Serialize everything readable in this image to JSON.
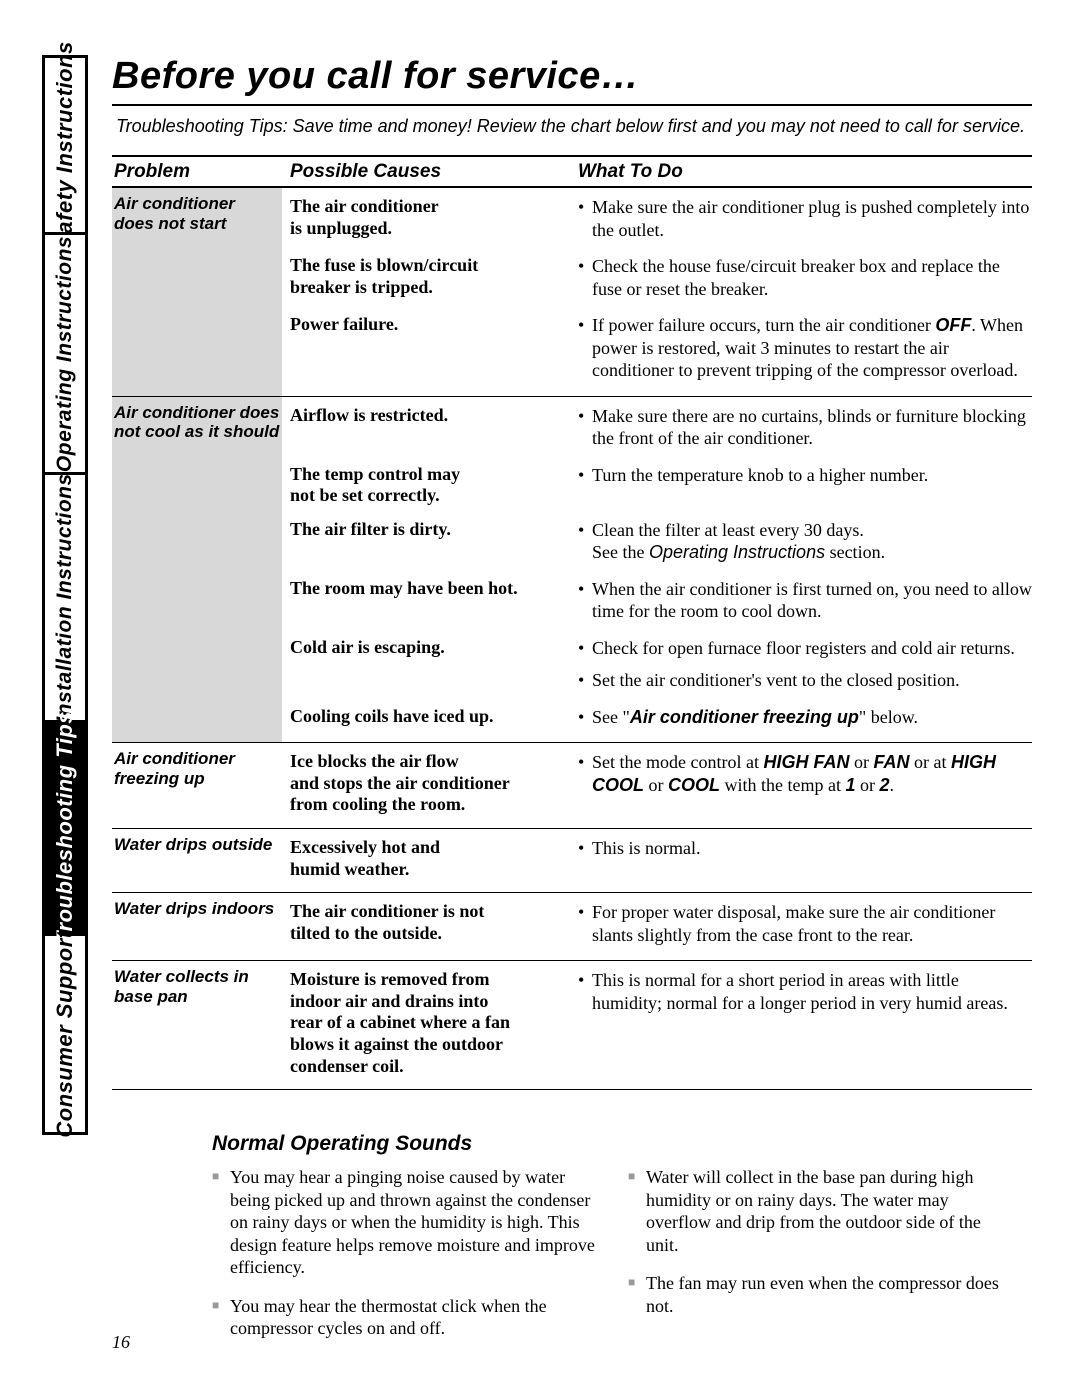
{
  "page_number": "16",
  "side_tabs": [
    {
      "label": "Safety Instructions",
      "active": false
    },
    {
      "label": "Operating Instructions",
      "active": false
    },
    {
      "label": "Installation Instructions",
      "active": false
    },
    {
      "label": "Troubleshooting Tips",
      "active": true
    },
    {
      "label": "Consumer Support",
      "active": false
    }
  ],
  "title": "Before you call for service…",
  "subtitle": "Troubleshooting Tips: Save time and money! Review the chart below first and you may not need to call for service.",
  "table": {
    "headers": {
      "problem": "Problem",
      "causes": "Possible Causes",
      "todo": "What To Do"
    },
    "sections": [
      {
        "problem_html": "Air conditioner<br>does not start",
        "shaded": true,
        "rows": [
          {
            "cause_html": "The air conditioner<br>is unplugged.",
            "todos": [
              "Make sure the air conditioner plug is pushed completely into the outlet."
            ]
          },
          {
            "cause_html": "The fuse is blown/circuit<br>breaker is tripped.",
            "todos": [
              "Check the house fuse/circuit breaker box and replace the fuse or reset the breaker."
            ]
          },
          {
            "cause_html": "Power failure.",
            "todos": [
              "If power failure occurs, turn the air conditioner <span class=\"bold-sans\">OFF</span>. When power is restored, wait 3 minutes to restart the air conditioner to prevent tripping of the compressor overload."
            ]
          }
        ]
      },
      {
        "problem_html": "Air conditioner does<br>not cool as it should",
        "shaded": true,
        "rows": [
          {
            "cause_html": "Airflow is restricted.",
            "todos": [
              "Make sure there are no curtains, blinds or furniture blocking the front of the air conditioner."
            ]
          },
          {
            "cause_html": "The temp control may<br>not be set correctly.",
            "todos": [
              "Turn the temperature knob to a higher number."
            ]
          },
          {
            "cause_html": "The air filter is dirty.",
            "todos": [
              "Clean the filter at least every 30 days.<br>See the <span class=\"it-sans\">Operating Instructions</span> section."
            ]
          },
          {
            "cause_html": "The room may have been hot.",
            "todos": [
              "When the air conditioner is first turned on, you need to allow time for the room to cool down."
            ]
          },
          {
            "cause_html": "Cold air is escaping.",
            "todos": [
              "Check for open furnace floor registers and cold air returns.",
              "Set the air conditioner's vent to the closed position."
            ]
          },
          {
            "cause_html": "Cooling coils have iced up.",
            "todos": [
              "See \"<span class=\"bold-sans\">Air conditioner freezing up</span>\" below."
            ]
          }
        ]
      },
      {
        "problem_html": "Air conditioner<br>freezing up",
        "shaded": false,
        "rows": [
          {
            "cause_html": "Ice blocks the air flow<br>and stops the air conditioner<br>from cooling the room.",
            "todos": [
              "Set the mode control at <span class=\"bold-sans\">HIGH FAN</span> or <span class=\"bold-sans\">FAN</span> or at <span class=\"bold-sans\">HIGH COOL</span> or <span class=\"bold-sans\">COOL</span> with the temp at <span class=\"bold-sans\">1</span> or <span class=\"bold-sans\">2</span>."
            ]
          }
        ]
      },
      {
        "problem_html": "Water drips outside",
        "shaded": false,
        "rows": [
          {
            "cause_html": "Excessively hot and<br>humid weather.",
            "todos": [
              "This is normal."
            ]
          }
        ]
      },
      {
        "problem_html": "Water drips indoors",
        "shaded": false,
        "rows": [
          {
            "cause_html": "The air conditioner is not<br>tilted to the outside.",
            "todos": [
              "For proper water disposal, make sure the air conditioner slants slightly from the case front to the rear."
            ]
          }
        ]
      },
      {
        "problem_html": "Water collects in<br>base pan",
        "shaded": false,
        "rows": [
          {
            "cause_html": "Moisture is removed from<br>indoor air and drains into<br>rear of a cabinet where a fan<br>blows it against the outdoor<br>condenser coil.",
            "todos": [
              "This is normal for a short period in areas with little humidity; normal for a longer period in very humid areas."
            ]
          }
        ]
      }
    ]
  },
  "nos": {
    "title": "Normal Operating Sounds",
    "left": [
      "You may hear a pinging noise caused by water being picked up and thrown against the condenser on rainy days or when the humidity is high. This design feature helps remove moisture and improve efficiency.",
      "You may hear the thermostat click when the compressor cycles on and off."
    ],
    "right": [
      "Water will collect in the base pan during high humidity or on rainy days. The water may overflow and drip from the outdoor side of the unit.",
      "The fan may run even when the compressor does not."
    ]
  },
  "colors": {
    "shade": "#d8d8d8",
    "square": "#9a9a9a"
  }
}
